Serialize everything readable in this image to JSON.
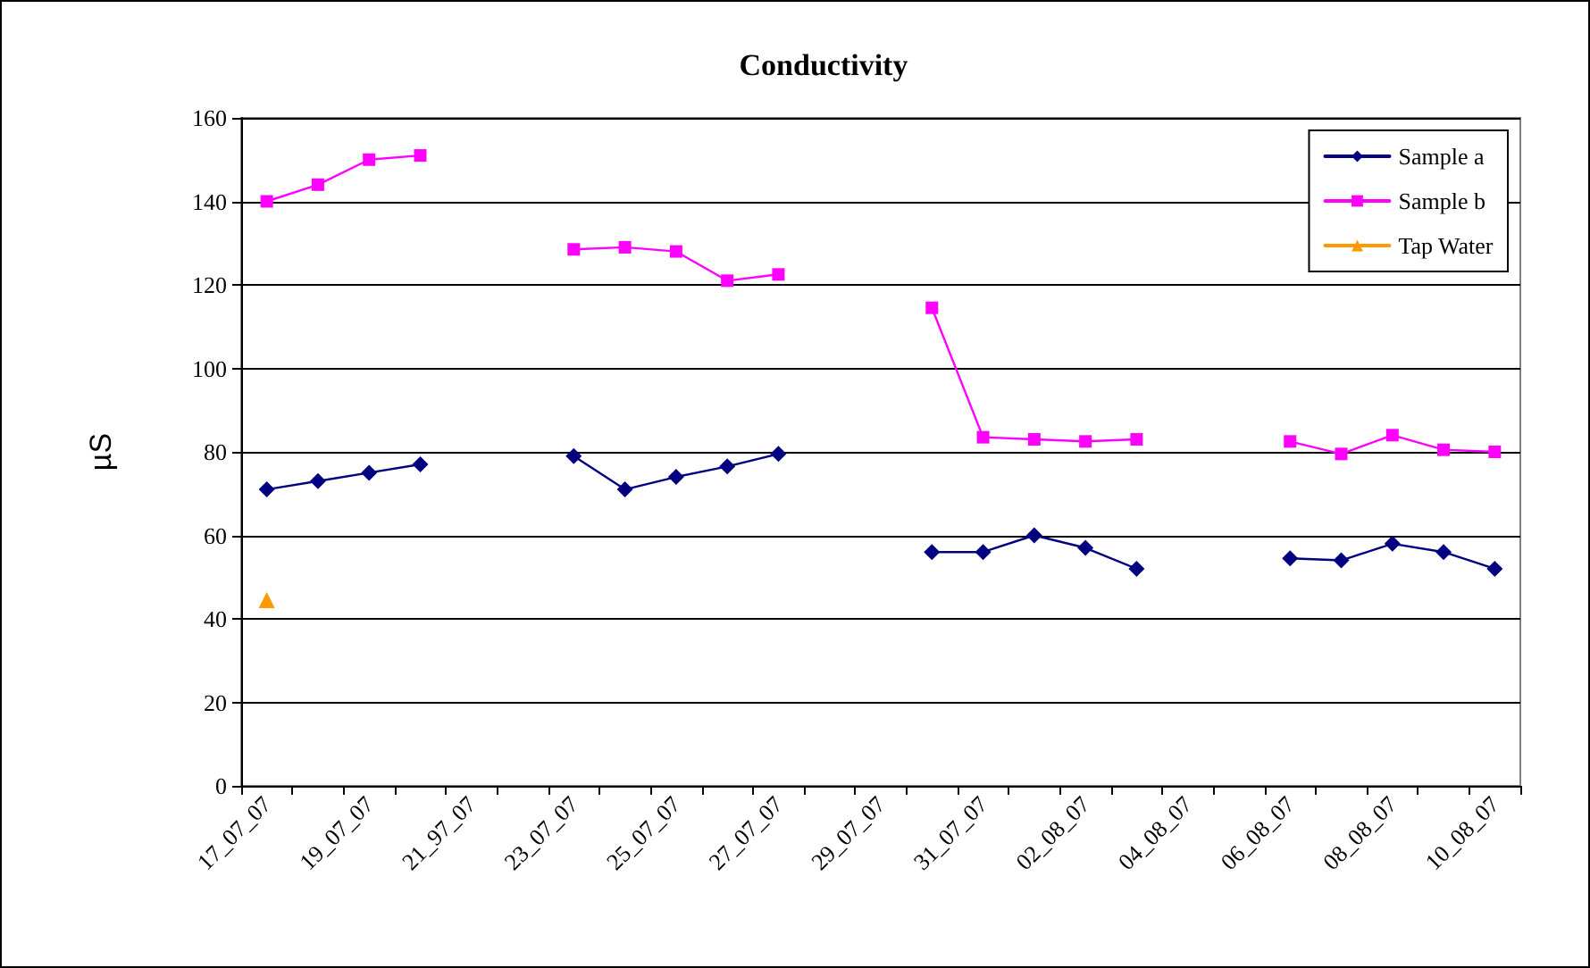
{
  "chart_data": {
    "type": "line",
    "title": "Conductivity",
    "ylabel": "µS",
    "categories": [
      "17_07_07",
      null,
      "19_07_07",
      null,
      "21_97_07",
      null,
      "23_07_07",
      null,
      "25_07_07",
      null,
      "27_07_07",
      null,
      "29_07_07",
      null,
      "31_07_07",
      null,
      "02_08_07",
      null,
      "04_08_07",
      null,
      "06_08_07",
      null,
      "08_08_07",
      null,
      "10_08_07"
    ],
    "series": [
      {
        "name": "Sample a",
        "color": "#000080",
        "marker": "diamond",
        "values": [
          71,
          73,
          75,
          77,
          null,
          null,
          79,
          71,
          74,
          76.5,
          79.5,
          null,
          null,
          56,
          56,
          60,
          57,
          52,
          null,
          null,
          54.5,
          54,
          58,
          56,
          52
        ]
      },
      {
        "name": "Sample b",
        "color": "#ff00ff",
        "marker": "square",
        "values": [
          140,
          144,
          150,
          151,
          null,
          null,
          128.5,
          129,
          128,
          121,
          122.5,
          null,
          null,
          114.5,
          83.5,
          83,
          82.5,
          83,
          null,
          null,
          82.5,
          79.5,
          84,
          80.5,
          80
        ]
      },
      {
        "name": "Tap Water",
        "color": "#ff9900",
        "marker": "triangle",
        "values": [
          44.5,
          null,
          null,
          null,
          null,
          null,
          null,
          null,
          null,
          null,
          null,
          null,
          null,
          null,
          null,
          null,
          null,
          null,
          null,
          null,
          null,
          null,
          null,
          null,
          null
        ]
      }
    ],
    "ylim": [
      0,
      160
    ],
    "yticks": [
      0,
      20,
      40,
      60,
      80,
      100,
      120,
      140,
      160
    ],
    "grid": "y",
    "legend": "top right",
    "line_style": "solid"
  }
}
